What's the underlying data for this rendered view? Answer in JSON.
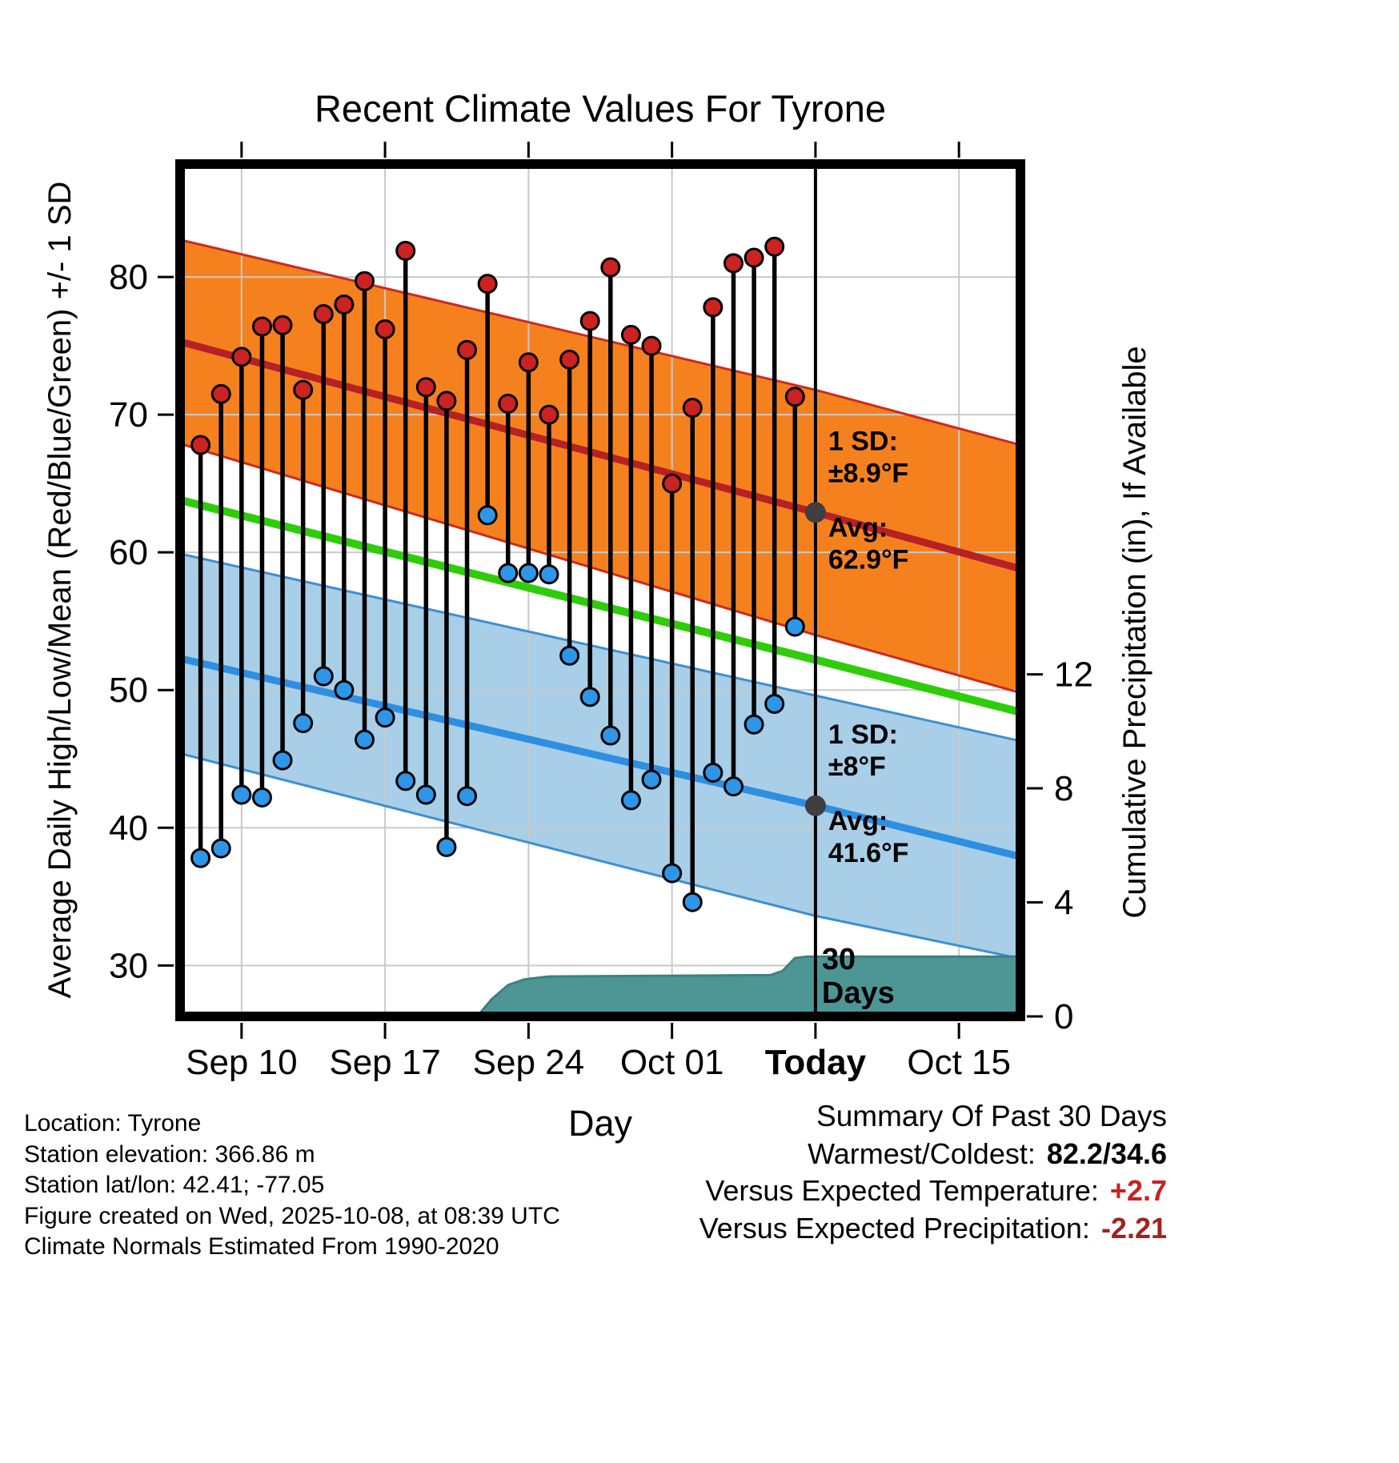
{
  "chart_data": {
    "type": "line",
    "title": "Recent Climate Values For Tyrone",
    "xlabel": "Day",
    "ylabel_left": "Average Daily High/Low/Mean (Red/Blue/Green) +/- 1 SD",
    "ylabel_right": "Cumulative Precipitation (in), If Available",
    "x_domain_days": [
      -1,
      40
    ],
    "x_ticks": [
      {
        "day": 2,
        "label": "Sep 10",
        "bold": false
      },
      {
        "day": 9,
        "label": "Sep 17",
        "bold": false
      },
      {
        "day": 16,
        "label": "Sep 24",
        "bold": false
      },
      {
        "day": 23,
        "label": "Oct 01",
        "bold": false
      },
      {
        "day": 30,
        "label": "Today",
        "bold": true
      },
      {
        "day": 37,
        "label": "Oct 15",
        "bold": false
      }
    ],
    "temp_axis": {
      "range": [
        26.3,
        88.2
      ],
      "ticks": [
        30,
        40,
        50,
        60,
        70,
        80
      ]
    },
    "precip_axis": {
      "ticks": [
        0,
        4,
        8,
        12
      ],
      "inches_at_top": 29.9
    },
    "today_day": 30,
    "daily": [
      {
        "date": "Sep 08",
        "high": 67.8,
        "low": 37.8
      },
      {
        "date": "Sep 09",
        "high": 71.5,
        "low": 38.5
      },
      {
        "date": "Sep 10",
        "high": 74.2,
        "low": 42.4
      },
      {
        "date": "Sep 11",
        "high": 76.4,
        "low": 42.2
      },
      {
        "date": "Sep 12",
        "high": 76.5,
        "low": 44.9
      },
      {
        "date": "Sep 13",
        "high": 71.8,
        "low": 47.6
      },
      {
        "date": "Sep 14",
        "high": 77.3,
        "low": 51.0
      },
      {
        "date": "Sep 15",
        "high": 78.0,
        "low": 50.0
      },
      {
        "date": "Sep 16",
        "high": 79.7,
        "low": 46.4
      },
      {
        "date": "Sep 17",
        "high": 76.2,
        "low": 48.0
      },
      {
        "date": "Sep 18",
        "high": 81.9,
        "low": 43.4
      },
      {
        "date": "Sep 19",
        "high": 72.0,
        "low": 42.4
      },
      {
        "date": "Sep 20",
        "high": 71.0,
        "low": 38.6
      },
      {
        "date": "Sep 21",
        "high": 74.7,
        "low": 42.3
      },
      {
        "date": "Sep 22",
        "high": 79.5,
        "low": 62.7
      },
      {
        "date": "Sep 23",
        "high": 70.8,
        "low": 58.5
      },
      {
        "date": "Sep 24",
        "high": 73.8,
        "low": 58.5
      },
      {
        "date": "Sep 25",
        "high": 70.0,
        "low": 58.4
      },
      {
        "date": "Sep 26",
        "high": 74.0,
        "low": 52.5
      },
      {
        "date": "Sep 27",
        "high": 76.8,
        "low": 49.5
      },
      {
        "date": "Sep 28",
        "high": 80.7,
        "low": 46.7
      },
      {
        "date": "Sep 29",
        "high": 75.8,
        "low": 42.0
      },
      {
        "date": "Sep 30",
        "high": 75.0,
        "low": 43.5
      },
      {
        "date": "Oct 01",
        "high": 65.0,
        "low": 36.7
      },
      {
        "date": "Oct 02",
        "high": 70.5,
        "low": 34.6
      },
      {
        "date": "Oct 03",
        "high": 77.8,
        "low": 44.0
      },
      {
        "date": "Oct 04",
        "high": 81.0,
        "low": 43.0
      },
      {
        "date": "Oct 05",
        "high": 81.4,
        "low": 47.5
      },
      {
        "date": "Oct 06",
        "high": 82.2,
        "low": 49.0
      },
      {
        "date": "Oct 07",
        "high": 71.3,
        "low": 54.6
      }
    ],
    "normals": {
      "high_upper": [
        [
          -1,
          82.7
        ],
        [
          30,
          71.8
        ],
        [
          40,
          67.8
        ]
      ],
      "high_center": [
        [
          -1,
          75.3
        ],
        [
          30,
          62.9
        ],
        [
          40,
          58.8
        ]
      ],
      "high_lower": [
        [
          -1,
          67.9
        ],
        [
          30,
          54.0
        ],
        [
          40,
          49.8
        ]
      ],
      "mean": [
        [
          -1,
          63.8
        ],
        [
          30,
          52.2
        ],
        [
          40,
          48.4
        ]
      ],
      "low_upper": [
        [
          -1,
          59.9
        ],
        [
          30,
          49.6
        ],
        [
          40,
          46.3
        ]
      ],
      "low_center": [
        [
          -1,
          52.3
        ],
        [
          30,
          41.6
        ],
        [
          40,
          37.9
        ]
      ],
      "low_lower": [
        [
          -1,
          45.4
        ],
        [
          30,
          33.6
        ],
        [
          40,
          30.5
        ]
      ]
    },
    "precip_cumulative": [
      [
        -1,
        0
      ],
      [
        13.5,
        0
      ],
      [
        14.2,
        0.6
      ],
      [
        15,
        1.1
      ],
      [
        15.8,
        1.3
      ],
      [
        17,
        1.4
      ],
      [
        27.8,
        1.45
      ],
      [
        28.4,
        1.6
      ],
      [
        29,
        2.05
      ],
      [
        29.6,
        2.1
      ],
      [
        40,
        2.1
      ]
    ],
    "annotations": {
      "high_sd": {
        "line1": "1 SD:",
        "line2": "±8.9°F",
        "avg1": "Avg:",
        "avg2": "62.9°F",
        "avg_value": 62.9
      },
      "low_sd": {
        "line1": "1 SD:",
        "line2": "±8°F",
        "avg1": "Avg:",
        "avg2": "41.6°F",
        "avg_value": 41.6
      },
      "period": [
        "30",
        "Days"
      ]
    },
    "colors": {
      "high_band": "#F5811E",
      "high_edge": "#CC2A1F",
      "high_line": "#B72025",
      "low_band": "#A8CEE8",
      "low_edge": "#3E8FD0",
      "low_line": "#2E8FE0",
      "mean_line": "#2FCC0A",
      "dot_high": "#CC2222",
      "dot_low": "#2E96E8",
      "precip_fill": "#4E9696",
      "precip_edge": "#3E8080",
      "annotation": "#565656",
      "today_marker": "#3F3F3F",
      "grid": "#C9C9C9"
    }
  },
  "footer": {
    "lines": [
      "Location: Tyrone",
      "Station elevation: 366.86 m",
      "Station lat/lon: 42.41; -77.05",
      "Figure created on Wed, 2025-10-08, at 08:39 UTC",
      "Climate Normals Estimated From 1990-2020"
    ]
  },
  "summary": {
    "title": "Summary Of Past 30 Days",
    "rows": [
      {
        "label": "Warmest/Coldest:",
        "value": "82.2/34.6",
        "color": "#000000"
      },
      {
        "label": "Versus Expected Temperature:",
        "value": "+2.7",
        "color": "#CC2020"
      },
      {
        "label": "Versus Expected Precipitation:",
        "value": "-2.21",
        "color": "#A32121"
      }
    ]
  }
}
